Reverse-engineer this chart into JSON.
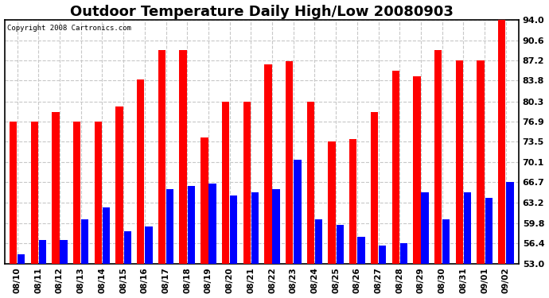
{
  "title": "Outdoor Temperature Daily High/Low 20080903",
  "copyright": "Copyright 2008 Cartronics.com",
  "dates": [
    "08/10",
    "08/11",
    "08/12",
    "08/13",
    "08/14",
    "08/15",
    "08/16",
    "08/17",
    "08/18",
    "08/19",
    "08/20",
    "08/21",
    "08/22",
    "08/23",
    "08/24",
    "08/25",
    "08/26",
    "08/27",
    "08/28",
    "08/29",
    "08/30",
    "08/31",
    "09/01",
    "09/02"
  ],
  "highs": [
    76.9,
    76.9,
    78.5,
    76.9,
    76.9,
    79.5,
    84.0,
    88.9,
    88.9,
    74.2,
    80.3,
    80.3,
    86.5,
    87.0,
    80.3,
    73.5,
    74.0,
    78.5,
    85.5,
    84.5,
    88.9,
    87.2,
    87.2,
    94.0
  ],
  "lows": [
    54.5,
    57.0,
    57.0,
    60.5,
    62.5,
    58.5,
    59.2,
    65.5,
    66.0,
    66.5,
    64.5,
    65.0,
    65.5,
    70.5,
    60.5,
    59.5,
    57.5,
    56.0,
    56.5,
    65.0,
    60.5,
    65.0,
    64.0,
    66.7
  ],
  "high_color": "#ff0000",
  "low_color": "#0000ff",
  "background_color": "#ffffff",
  "plot_background": "#ffffff",
  "grid_color": "#c8c8c8",
  "title_fontsize": 13,
  "ymin": 53.0,
  "ymax": 94.0,
  "yticks": [
    53.0,
    56.4,
    59.8,
    63.2,
    66.7,
    70.1,
    73.5,
    76.9,
    80.3,
    83.8,
    87.2,
    90.6,
    94.0
  ]
}
